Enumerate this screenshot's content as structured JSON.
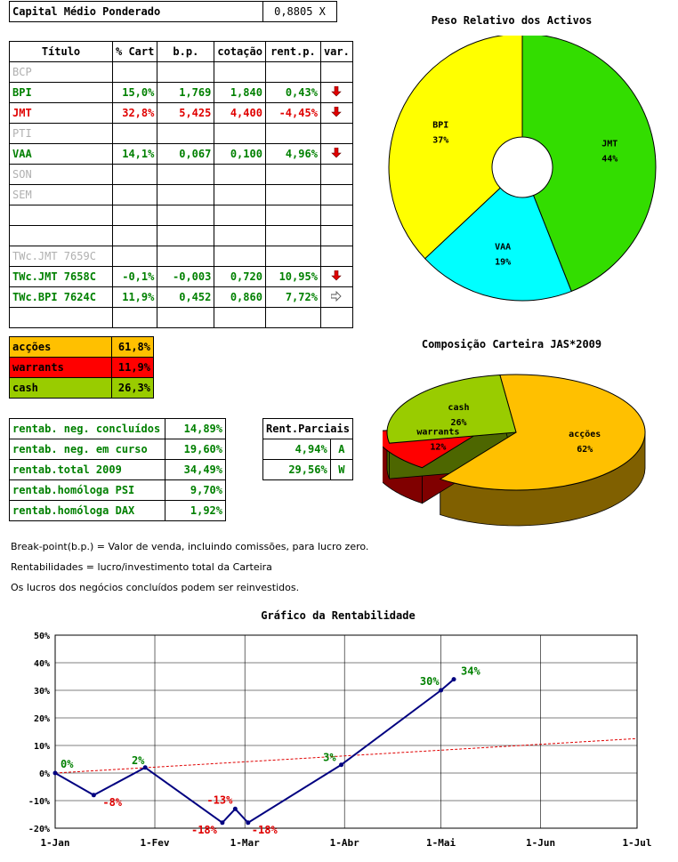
{
  "capital": {
    "label": "Capital Médio Ponderado",
    "value": "0,8805 X"
  },
  "main_table": {
    "headers": [
      "Título",
      "% Cart",
      "b.p.",
      "cotação",
      "rent.p.",
      "var."
    ],
    "rows": [
      {
        "titulo": "BCP",
        "cart": "",
        "bp": "",
        "cot": "",
        "rent": "",
        "var": "",
        "style": "gray"
      },
      {
        "titulo": "BPI",
        "cart": "15,0%",
        "bp": "1,769",
        "cot": "1,840",
        "rent": "0,43%",
        "var": "down",
        "style": "green"
      },
      {
        "titulo": "JMT",
        "cart": "32,8%",
        "bp": "5,425",
        "cot": "4,400",
        "rent": "-4,45%",
        "var": "down",
        "style": "red"
      },
      {
        "titulo": "PTI",
        "cart": "",
        "bp": "",
        "cot": "",
        "rent": "",
        "var": "",
        "style": "gray"
      },
      {
        "titulo": "VAA",
        "cart": "14,1%",
        "bp": "0,067",
        "cot": "0,100",
        "rent": "4,96%",
        "var": "down",
        "style": "green"
      },
      {
        "titulo": "SON",
        "cart": "",
        "bp": "",
        "cot": "",
        "rent": "",
        "var": "",
        "style": "gray"
      },
      {
        "titulo": "SEM",
        "cart": "",
        "bp": "",
        "cot": "",
        "rent": "",
        "var": "",
        "style": "gray"
      },
      {
        "titulo": "",
        "cart": "",
        "bp": "",
        "cot": "",
        "rent": "",
        "var": "",
        "style": "gray"
      },
      {
        "titulo": "",
        "cart": "",
        "bp": "",
        "cot": "",
        "rent": "",
        "var": "",
        "style": "gray"
      },
      {
        "titulo": "TWc.JMT 7659C",
        "cart": "",
        "bp": "",
        "cot": "",
        "rent": "",
        "var": "",
        "style": "gray"
      },
      {
        "titulo": "TWc.JMT 7658C",
        "cart": "-0,1%",
        "bp": "-0,003",
        "cot": "0,720",
        "rent": "10,95%",
        "var": "down",
        "style": "green"
      },
      {
        "titulo": "TWc.BPI 7624C",
        "cart": "11,9%",
        "bp": "0,452",
        "cot": "0,860",
        "rent": "7,72%",
        "var": "right",
        "style": "green"
      },
      {
        "titulo": "",
        "cart": "",
        "bp": "",
        "cot": "",
        "rent": "",
        "var": "",
        "style": "gray"
      }
    ]
  },
  "composition": [
    {
      "label": "acções",
      "value": "61,8%",
      "color": "#ffc000"
    },
    {
      "label": "warrants",
      "value": "11,9%",
      "color": "#ff0000"
    },
    {
      "label": "cash",
      "value": "26,3%",
      "color": "#99cc00"
    }
  ],
  "rentab": [
    {
      "label": "rentab. neg. concluídos",
      "value": "14,89%"
    },
    {
      "label": "rentab. neg. em curso",
      "value": "19,60%"
    },
    {
      "label": "rentab.total 2009",
      "value": "34,49%"
    },
    {
      "label": "rentab.homóloga PSI",
      "value": "9,70%"
    },
    {
      "label": "rentab.homóloga DAX",
      "value": "1,92%"
    }
  ],
  "parciais": {
    "header": "Rent.Parciais",
    "rows": [
      {
        "value": "4,94%",
        "tag": "A"
      },
      {
        "value": "29,56%",
        "tag": "W"
      }
    ]
  },
  "notes": [
    "Break-point(b.p.) = Valor de venda, incluindo comissões, para lucro zero.",
    "Rentabilidades = lucro/investimento total da Carteira",
    "Os lucros dos negócios concluídos podem ser reinvestidos."
  ],
  "chart_data": [
    {
      "type": "pie",
      "title": "Peso Relativo dos Activos",
      "donut": true,
      "slices": [
        {
          "label": "JMT",
          "value": 44,
          "display": "44%",
          "color": "#33dd00"
        },
        {
          "label": "VAA",
          "value": 19,
          "display": "19%",
          "color": "#00ffff"
        },
        {
          "label": "BPI",
          "value": 37,
          "display": "37%",
          "color": "#ffff00"
        }
      ]
    },
    {
      "type": "pie",
      "title": "Composição Carteira JAS*2009",
      "three_d": true,
      "slices": [
        {
          "label": "acções",
          "value": 62,
          "display": "62%",
          "color": "#ffc000",
          "side": "#806000"
        },
        {
          "label": "warrants",
          "value": 12,
          "display": "12%",
          "color": "#ff0000",
          "side": "#800000",
          "exploded": true
        },
        {
          "label": "cash",
          "value": 26,
          "display": "26%",
          "color": "#99cc00",
          "side": "#4d6600"
        }
      ]
    },
    {
      "type": "line",
      "title": "Gráfico da Rentabilidade",
      "x_ticks": [
        "1-Jan",
        "1-Fev",
        "1-Mar",
        "1-Abr",
        "1-Mai",
        "1-Jun",
        "1-Jul"
      ],
      "ylim": [
        -20,
        50
      ],
      "y_ticks": [
        "-20%",
        "-10%",
        "0%",
        "10%",
        "20%",
        "30%",
        "40%",
        "50%"
      ],
      "series": [
        {
          "color": "#000080",
          "points": [
            {
              "x": "2009-01-01",
              "y": 0,
              "label": "0%",
              "labelColor": "#008000"
            },
            {
              "x": "2009-01-13",
              "y": -8,
              "label": "-8%",
              "labelColor": "#e00000"
            },
            {
              "x": "2009-01-29",
              "y": 2,
              "label": "2%",
              "labelColor": "#008000"
            },
            {
              "x": "2009-02-22",
              "y": -18,
              "label": "-18%",
              "labelColor": "#e00000"
            },
            {
              "x": "2009-02-26",
              "y": -13,
              "label": "-13%",
              "labelColor": "#e00000"
            },
            {
              "x": "2009-03-02",
              "y": -18,
              "label": "-18%",
              "labelColor": "#e00000"
            },
            {
              "x": "2009-03-31",
              "y": 3,
              "label": "3%",
              "labelColor": "#008000"
            },
            {
              "x": "2009-05-01",
              "y": 30,
              "label": "30%",
              "labelColor": "#008000"
            },
            {
              "x": "2009-05-05",
              "y": 34,
              "label": "34%",
              "labelColor": "#008000"
            }
          ]
        },
        {
          "color": "#e00000",
          "dashed": true,
          "points": [
            {
              "x": "2009-01-01",
              "y": 0
            },
            {
              "x": "2009-07-01",
              "y": 12.5
            }
          ]
        }
      ]
    }
  ]
}
